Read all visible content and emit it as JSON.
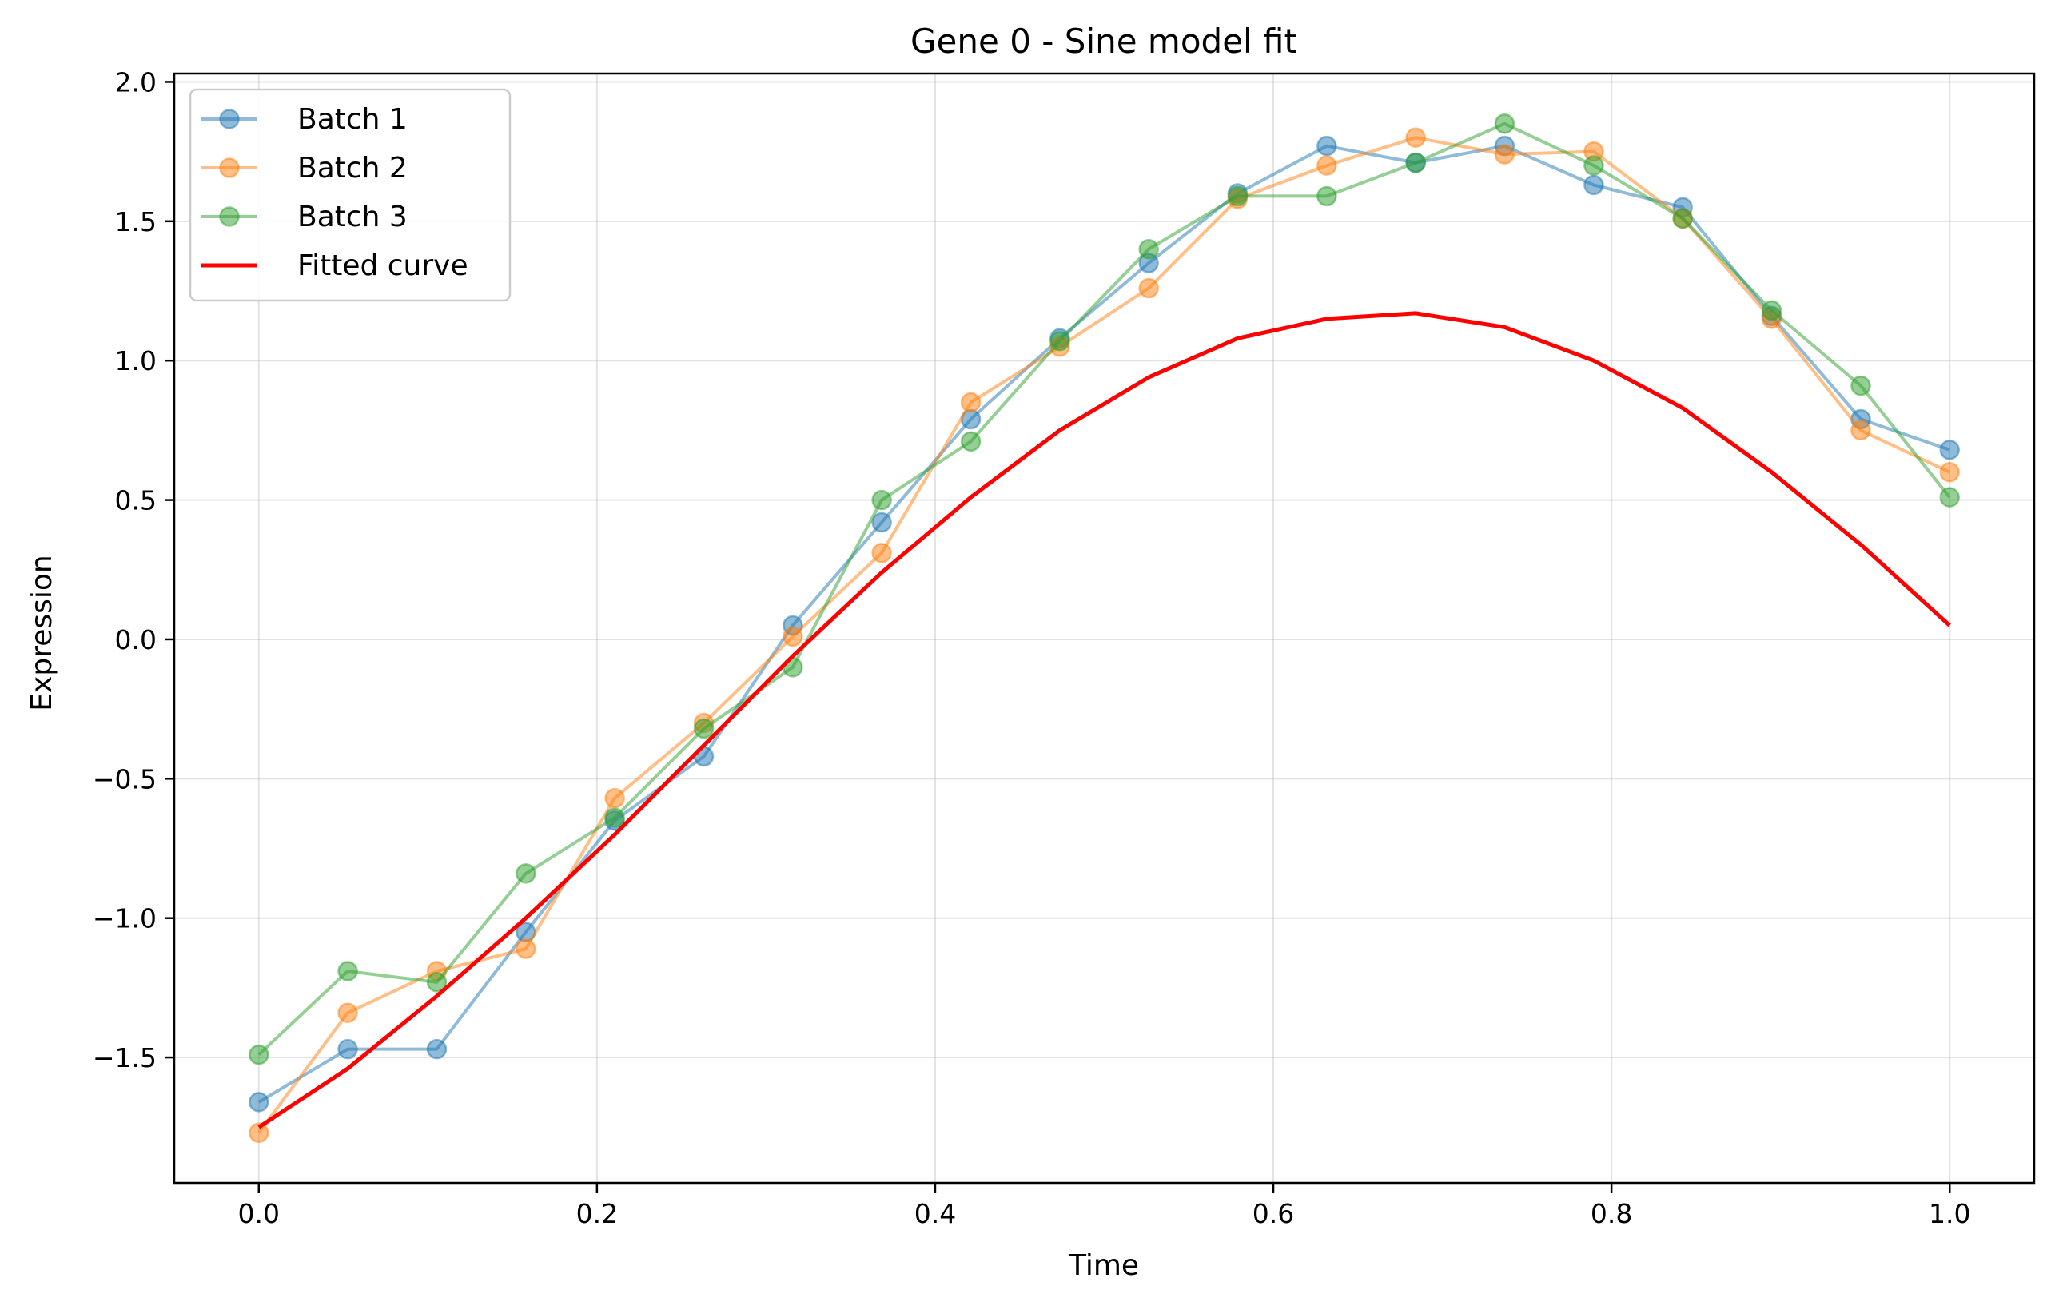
{
  "chart_data": {
    "type": "line",
    "title": "Gene 0 - Sine model fit",
    "xlabel": "Time",
    "ylabel": "Expression",
    "xlim": [
      -0.05,
      1.05
    ],
    "ylim": [
      -1.95,
      2.03
    ],
    "x_ticks": [
      0.0,
      0.2,
      0.4,
      0.6,
      0.8,
      1.0
    ],
    "x_tick_labels": [
      "0.0",
      "0.2",
      "0.4",
      "0.6",
      "0.8",
      "1.0"
    ],
    "y_ticks": [
      -1.5,
      -1.0,
      -0.5,
      0.0,
      0.5,
      1.0,
      1.5,
      2.0
    ],
    "y_tick_labels": [
      "−1.5",
      "−1.0",
      "−0.5",
      "0.0",
      "0.5",
      "1.0",
      "1.5",
      "2.0"
    ],
    "grid": true,
    "legend_position": "top-left",
    "x": [
      0.0,
      0.0526,
      0.1053,
      0.1579,
      0.2105,
      0.2632,
      0.3158,
      0.3684,
      0.4211,
      0.4737,
      0.5263,
      0.5789,
      0.6316,
      0.6842,
      0.7368,
      0.7895,
      0.8421,
      0.8947,
      0.9474,
      1.0
    ],
    "series": [
      {
        "name": "Batch 1",
        "color": "#1f77b4",
        "style": "line-marker",
        "values": [
          -1.66,
          -1.47,
          -1.47,
          -1.05,
          -0.65,
          -0.42,
          0.05,
          0.42,
          0.79,
          1.08,
          1.35,
          1.6,
          1.77,
          1.71,
          1.77,
          1.63,
          1.55,
          1.16,
          0.79,
          0.68
        ]
      },
      {
        "name": "Batch 2",
        "color": "#ff7f0e",
        "style": "line-marker",
        "values": [
          -1.77,
          -1.34,
          -1.19,
          -1.11,
          -0.57,
          -0.3,
          0.01,
          0.31,
          0.85,
          1.05,
          1.26,
          1.58,
          1.7,
          1.8,
          1.74,
          1.75,
          1.51,
          1.15,
          0.75,
          0.6
        ]
      },
      {
        "name": "Batch 3",
        "color": "#2ca02c",
        "style": "line-marker",
        "values": [
          -1.49,
          -1.19,
          -1.23,
          -0.84,
          -0.64,
          -0.32,
          -0.1,
          0.5,
          0.71,
          1.07,
          1.4,
          1.59,
          1.59,
          1.71,
          1.85,
          1.7,
          1.51,
          1.18,
          0.91,
          0.51
        ]
      },
      {
        "name": "Fitted curve",
        "color": "#ff0000",
        "style": "line",
        "values": [
          -1.75,
          -1.54,
          -1.28,
          -1.0,
          -0.7,
          -0.38,
          -0.06,
          0.24,
          0.51,
          0.75,
          0.94,
          1.08,
          1.15,
          1.17,
          1.12,
          1.0,
          0.83,
          0.6,
          0.34,
          0.05
        ]
      }
    ]
  }
}
